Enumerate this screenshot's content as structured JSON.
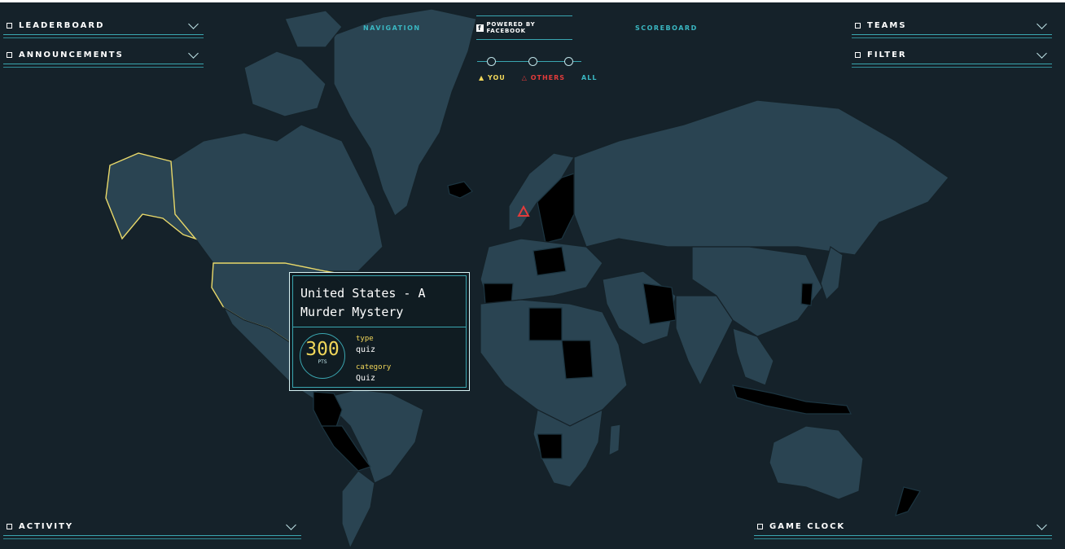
{
  "panels": {
    "leaderboard": "LEADERBOARD",
    "announcements": "ANNOUNCEMENTS",
    "teams": "TEAMS",
    "filter": "FILTER",
    "activity": "ACTIVITY",
    "game_clock": "GAME CLOCK"
  },
  "top_nav": {
    "navigation": "NAVIGATION",
    "powered_by": "POWERED BY FACEBOOK",
    "scoreboard": "SCOREBOARD"
  },
  "legend": {
    "you": "YOU",
    "others": "OTHERS",
    "all": "ALL"
  },
  "card": {
    "title": "United States - A Murder Mystery",
    "points": "300",
    "points_unit": "PTS",
    "type_label": "type",
    "type_value": "quiz",
    "category_label": "category",
    "category_value": "Quiz"
  },
  "colors": {
    "background": "#15222a",
    "land": "#2a4452",
    "captured": "#000000",
    "accent": "#3aa6b0",
    "you": "#f0d65a",
    "others": "#e23b3b"
  },
  "icons": {
    "fb": "facebook-icon",
    "marker": "others-triangle-icon"
  }
}
